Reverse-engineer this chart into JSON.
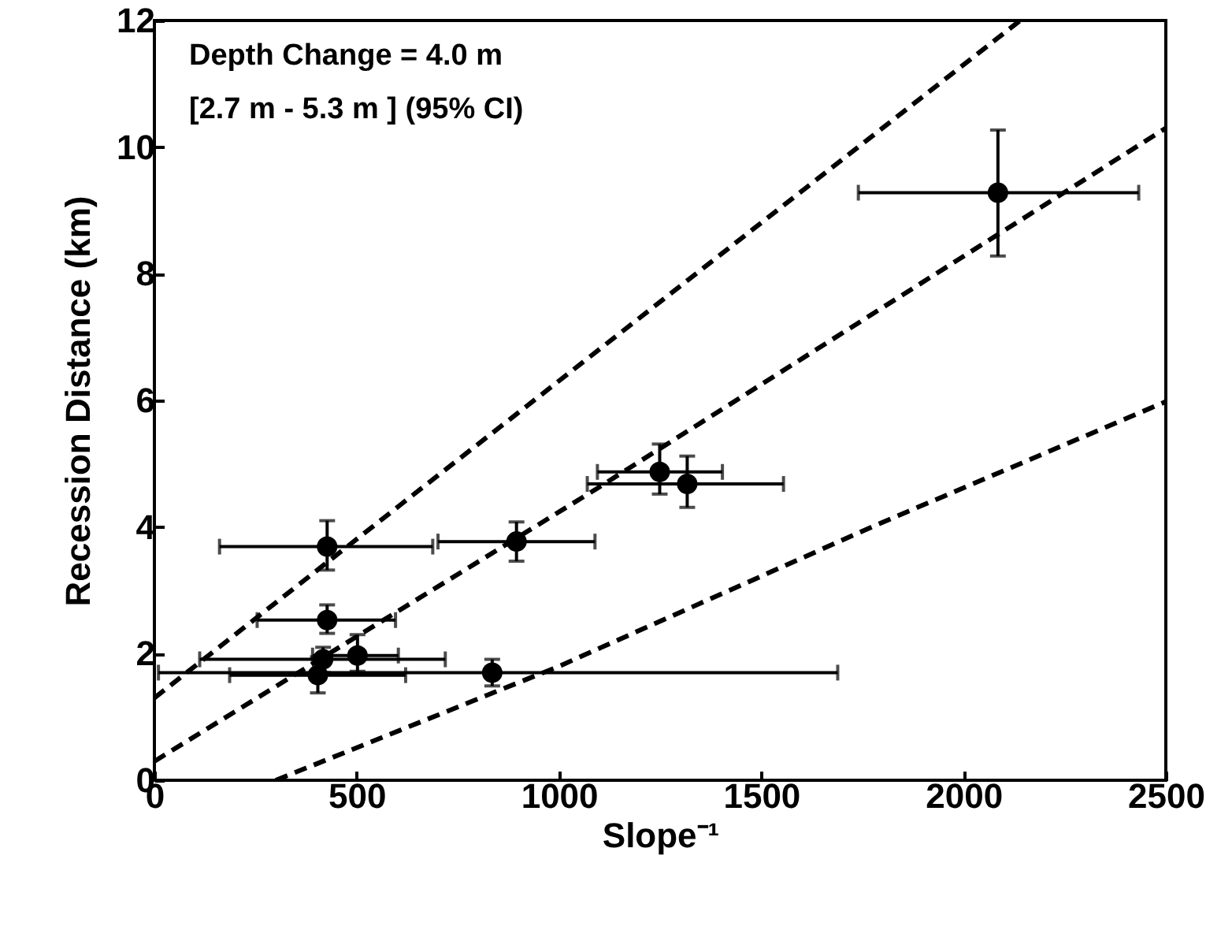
{
  "chart_data": {
    "type": "scatter",
    "xlabel": "Slope⁻¹",
    "ylabel": "Recession Distance (km)",
    "xlim": [
      0,
      2500
    ],
    "ylim": [
      0,
      12
    ],
    "xticks": [
      0,
      500,
      1000,
      1500,
      2000,
      2500
    ],
    "yticks": [
      0,
      2,
      4,
      6,
      8,
      10,
      12
    ],
    "grid": false,
    "annotations": [
      "Depth Change = 4.0 m",
      "[2.7 m - 5.3 m ] (95% CI)"
    ],
    "series": [
      {
        "marker": "circle",
        "color": "#000000",
        "x": [
          427,
          895,
          427,
          502,
          417,
          404,
          835,
          1249,
          1317,
          2085
        ],
        "values": [
          3.69,
          3.77,
          2.53,
          1.97,
          1.91,
          1.66,
          1.7,
          4.87,
          4.68,
          9.28
        ],
        "xerrors": [
          [
            161,
            688
          ],
          [
            701,
            1089
          ],
          [
            254,
            596
          ],
          [
            391,
            603
          ],
          [
            112,
            719
          ],
          [
            186,
            621
          ],
          [
            10,
            1689
          ],
          [
            1095,
            1404
          ],
          [
            1070,
            1555
          ],
          [
            1740,
            2433
          ]
        ],
        "errors": [
          [
            3.32,
            4.1
          ],
          [
            3.46,
            4.08
          ],
          [
            2.32,
            2.77
          ],
          [
            1.72,
            2.3
          ],
          [
            1.7,
            2.1
          ],
          [
            1.38,
            1.95
          ],
          [
            1.49,
            1.91
          ],
          [
            4.52,
            5.31
          ],
          [
            4.31,
            5.12
          ],
          [
            8.28,
            10.27
          ]
        ]
      },
      {
        "type": "line",
        "color": "#000000",
        "line_style": "dashed",
        "x": [
          0,
          638,
          2140
        ],
        "values": [
          1.3,
          4.5,
          12
        ]
      },
      {
        "type": "line",
        "color": "#000000",
        "line_style": "dashed",
        "x": [
          0,
          1092,
          2500
        ],
        "values": [
          0.3,
          4.6,
          10.3
        ]
      },
      {
        "type": "line",
        "color": "#000000",
        "line_style": "dashed",
        "x": [
          300,
          1000,
          1780,
          2500
        ],
        "values": [
          0,
          1.8,
          4.02,
          5.98
        ]
      }
    ]
  }
}
